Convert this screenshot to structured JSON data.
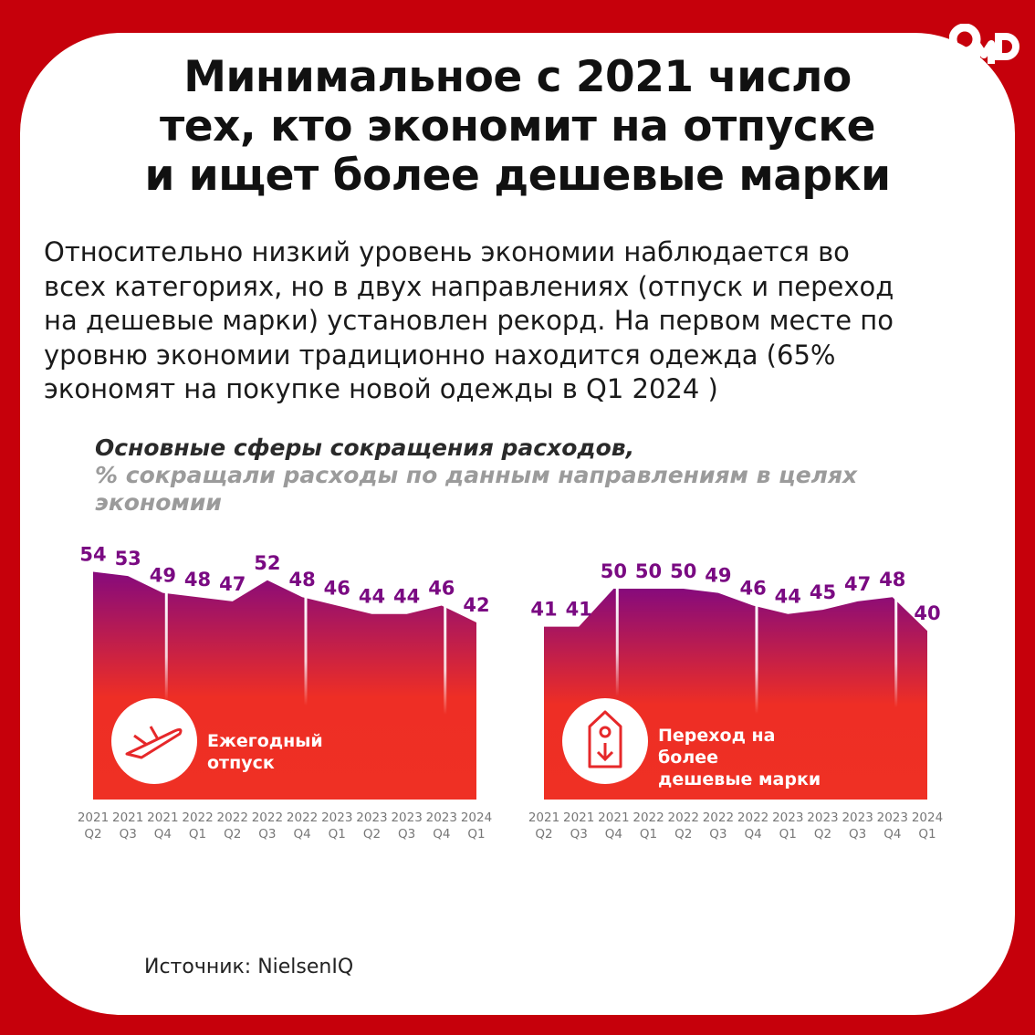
{
  "logo": "OMD",
  "title": [
    "Минимальное с 2021 число",
    "тех, кто экономит на отпуске",
    "и ищет более дешевые марки"
  ],
  "lead": [
    "Относительно низкий уровень экономии наблюдается во",
    "всех категориях, но в двух направлениях (отпуск и переход",
    "на дешевые марки) установлен рекорд. На первом месте по",
    "уровню экономии традиционно находится одежда (65%",
    "экономят на покупке новой одежды в Q1 2024 )"
  ],
  "subtitle": {
    "line1": "Основные сферы сокращения расходов,",
    "line2": "% сокращали расходы по данным направлениям в целях",
    "line3": "экономии"
  },
  "colors": {
    "background": "#c6000b",
    "area_top": "#860a7c",
    "area_bottom": "#ef2e24",
    "value_label": "#7a0a82",
    "tick": "#777777"
  },
  "chart_data": [
    {
      "type": "area",
      "label": [
        "Ежегодный",
        "отпуск"
      ],
      "icon": "airplane-takeoff-icon",
      "categories": [
        [
          "2021",
          "Q2"
        ],
        [
          "2021",
          "Q3"
        ],
        [
          "2021",
          "Q4"
        ],
        [
          "2022",
          "Q1"
        ],
        [
          "2022",
          "Q2"
        ],
        [
          "2022",
          "Q3"
        ],
        [
          "2022",
          "Q4"
        ],
        [
          "2023",
          "Q1"
        ],
        [
          "2023",
          "Q2"
        ],
        [
          "2023",
          "Q3"
        ],
        [
          "2023",
          "Q4"
        ],
        [
          "2024",
          "Q1"
        ]
      ],
      "values": [
        54,
        53,
        49,
        48,
        47,
        52,
        48,
        46,
        44,
        44,
        46,
        42
      ],
      "ylim": [
        0,
        55
      ]
    },
    {
      "type": "area",
      "label": [
        "Переход на",
        "более",
        "дешевые марки"
      ],
      "icon": "price-tag-down-icon",
      "categories": [
        [
          "2021",
          "Q2"
        ],
        [
          "2021",
          "Q3"
        ],
        [
          "2021",
          "Q4"
        ],
        [
          "2022",
          "Q1"
        ],
        [
          "2022",
          "Q2"
        ],
        [
          "2022",
          "Q3"
        ],
        [
          "2022",
          "Q4"
        ],
        [
          "2023",
          "Q1"
        ],
        [
          "2023",
          "Q2"
        ],
        [
          "2023",
          "Q3"
        ],
        [
          "2023",
          "Q4"
        ],
        [
          "2024",
          "Q1"
        ]
      ],
      "values": [
        41,
        41,
        50,
        50,
        50,
        49,
        46,
        44,
        45,
        47,
        48,
        40
      ],
      "ylim": [
        0,
        55
      ]
    }
  ],
  "source": "Источник: NielsenIQ"
}
